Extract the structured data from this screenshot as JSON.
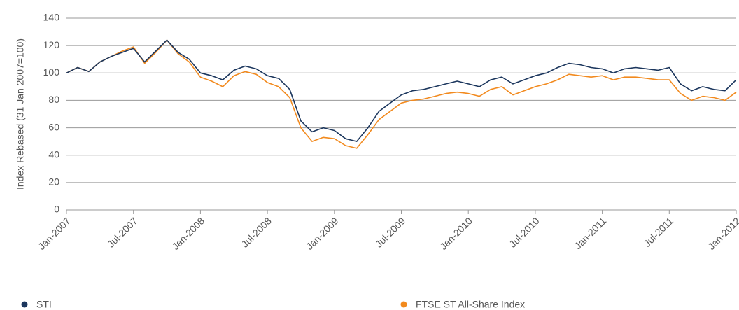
{
  "chart_data": {
    "type": "line",
    "y_label": "Index Rebased (31 Jan 2007=100)",
    "x": [
      "2007-01",
      "2007-02",
      "2007-03",
      "2007-04",
      "2007-05",
      "2007-06",
      "2007-07",
      "2007-08",
      "2007-09",
      "2007-10",
      "2007-11",
      "2007-12",
      "2008-01",
      "2008-02",
      "2008-03",
      "2008-04",
      "2008-05",
      "2008-06",
      "2008-07",
      "2008-08",
      "2008-09",
      "2008-10",
      "2008-11",
      "2008-12",
      "2009-01",
      "2009-02",
      "2009-03",
      "2009-04",
      "2009-05",
      "2009-06",
      "2009-07",
      "2009-08",
      "2009-09",
      "2009-10",
      "2009-11",
      "2009-12",
      "2010-01",
      "2010-02",
      "2010-03",
      "2010-04",
      "2010-05",
      "2010-06",
      "2010-07",
      "2010-08",
      "2010-09",
      "2010-10",
      "2010-11",
      "2010-12",
      "2011-01",
      "2011-02",
      "2011-03",
      "2011-04",
      "2011-05",
      "2011-06",
      "2011-07",
      "2011-08",
      "2011-09",
      "2011-10",
      "2011-11",
      "2011-12",
      "2012-01"
    ],
    "series": [
      {
        "name": "STI",
        "color": "#1b365d",
        "values": [
          100,
          104,
          101,
          108,
          112,
          115,
          118,
          108,
          116,
          124,
          115,
          110,
          100,
          98,
          95,
          102,
          105,
          103,
          98,
          96,
          88,
          65,
          57,
          60,
          58,
          52,
          50,
          60,
          72,
          78,
          84,
          87,
          88,
          90,
          92,
          94,
          92,
          90,
          95,
          97,
          92,
          95,
          98,
          100,
          104,
          107,
          106,
          104,
          103,
          100,
          103,
          104,
          103,
          102,
          104,
          92,
          87,
          90,
          88,
          87,
          95
        ]
      },
      {
        "name": "FTSE ST All-Share Index",
        "color": "#f28a1e",
        "values": [
          100,
          104,
          101,
          108,
          112,
          116,
          119,
          107,
          115,
          124,
          114,
          108,
          97,
          94,
          90,
          98,
          101,
          99,
          93,
          90,
          82,
          60,
          50,
          53,
          52,
          47,
          45,
          55,
          66,
          72,
          78,
          80,
          81,
          83,
          85,
          86,
          85,
          83,
          88,
          90,
          84,
          87,
          90,
          92,
          95,
          99,
          98,
          97,
          98,
          95,
          97,
          97,
          96,
          95,
          95,
          85,
          80,
          83,
          82,
          80,
          86
        ]
      }
    ],
    "xlim": [
      "2007-01",
      "2012-01"
    ],
    "xticks": [
      {
        "value": "2007-01",
        "label": "Jan-2007"
      },
      {
        "value": "2007-07",
        "label": "Jul-2007"
      },
      {
        "value": "2008-01",
        "label": "Jan-2008"
      },
      {
        "value": "2008-07",
        "label": "Jul-2008"
      },
      {
        "value": "2009-01",
        "label": "Jan-2009"
      },
      {
        "value": "2009-07",
        "label": "Jul-2009"
      },
      {
        "value": "2010-01",
        "label": "Jan-2010"
      },
      {
        "value": "2010-07",
        "label": "Jul-2010"
      },
      {
        "value": "2011-01",
        "label": "Jan-2011"
      },
      {
        "value": "2011-07",
        "label": "Jul-2011"
      },
      {
        "value": "2012-01",
        "label": "Jan-2012"
      }
    ],
    "ylim": [
      0,
      140
    ],
    "yticks": [
      0,
      20,
      40,
      60,
      80,
      100,
      120,
      140
    ],
    "grid": true
  }
}
